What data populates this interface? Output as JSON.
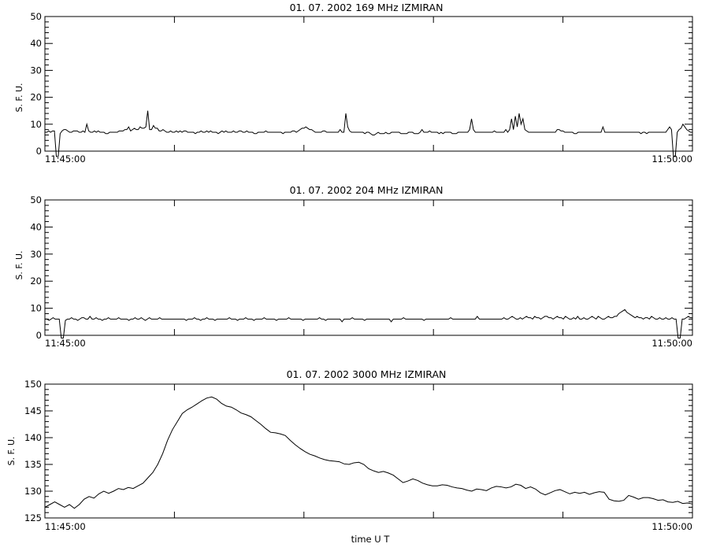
{
  "chart_data": [
    {
      "type": "line",
      "title": "01.  07.  2002    169 MHz    IZMIRAN",
      "ylabel": "S. F. U.",
      "xlabel": "",
      "ylim": [
        0,
        50
      ],
      "yticks": [
        0,
        10,
        20,
        30,
        40,
        50
      ],
      "xlim": [
        "11:45:00",
        "11:50:00"
      ],
      "xtick_labels": [
        "11:45:00",
        "11:50:00"
      ],
      "minor_x_ticks": 5,
      "series": [
        {
          "values": [
            7,
            7,
            7.5,
            7,
            7.5,
            7.5,
            -2,
            -2,
            6.5,
            7.5,
            8,
            8,
            7.5,
            7,
            7,
            7.5,
            7.5,
            7.5,
            7,
            7,
            7.5,
            7,
            10,
            7.5,
            7,
            7,
            7.5,
            7,
            7.5,
            7,
            7,
            7,
            6.5,
            6.5,
            7,
            7,
            7,
            7,
            7,
            7.5,
            7.5,
            7.5,
            8,
            8,
            9,
            7.5,
            8,
            8.5,
            8,
            8,
            9,
            8.5,
            8.5,
            9,
            15,
            8,
            8,
            9.5,
            8.5,
            8.5,
            7.5,
            7.5,
            8,
            7.5,
            7,
            7,
            7.5,
            7,
            7,
            7.5,
            7,
            7.5,
            7,
            7.5,
            7.5,
            7,
            7,
            7,
            7,
            6.5,
            7,
            7,
            7.5,
            7,
            7,
            7.5,
            7,
            7.5,
            7,
            7,
            7,
            6.5,
            7,
            7.5,
            7,
            7.5,
            7,
            7,
            7,
            7.5,
            7,
            7,
            7.5,
            7.5,
            7,
            7,
            7.5,
            7,
            7,
            7,
            6.5,
            6.5,
            7,
            7,
            7,
            7,
            7.5,
            7,
            7,
            7,
            7,
            7,
            7,
            7,
            7,
            6.5,
            7,
            7,
            7,
            7,
            7.5,
            7.5,
            7,
            7.5,
            8,
            8.5,
            8.5,
            9,
            8.5,
            8,
            8,
            7.5,
            7,
            7,
            7,
            7,
            7.5,
            7.5,
            7,
            7,
            7,
            7,
            7,
            7,
            7,
            8,
            7,
            7,
            14,
            9,
            7.5,
            7,
            7,
            7,
            7,
            7,
            7,
            7,
            6.5,
            7,
            7,
            6.5,
            6,
            6,
            6.5,
            7,
            6.5,
            6.5,
            6.5,
            7,
            6.5,
            6.5,
            7,
            7,
            7,
            7,
            7,
            6.5,
            6.5,
            6.5,
            6.5,
            7,
            7,
            7,
            6.5,
            6.5,
            6.5,
            7,
            8,
            7,
            7,
            7,
            7.5,
            7,
            7,
            7,
            7,
            6.5,
            7,
            6.5,
            7,
            7,
            7,
            7,
            6.5,
            6.5,
            6.5,
            7,
            7,
            7,
            7,
            7,
            7,
            8,
            12,
            8,
            7,
            7,
            7,
            7,
            7,
            7,
            7,
            7,
            7,
            7,
            7.5,
            7,
            7,
            7,
            7,
            7,
            8,
            7,
            8,
            12,
            8,
            13,
            9,
            14,
            10,
            12,
            8,
            7.5,
            7,
            7,
            7,
            7,
            7,
            7,
            7,
            7,
            7,
            7,
            7,
            7,
            7,
            7,
            7,
            8,
            8,
            7.5,
            7.5,
            7,
            7,
            7,
            7,
            7,
            6.5,
            6.5,
            7,
            7,
            7,
            7,
            7,
            7,
            7,
            7,
            7,
            7,
            7,
            7,
            7,
            9,
            7,
            7,
            7,
            7,
            7,
            7,
            7,
            7,
            7,
            7,
            7,
            7,
            7,
            7,
            7,
            7,
            7,
            7,
            7,
            6.5,
            7,
            7,
            6.5,
            7,
            7,
            7,
            7,
            7,
            7,
            7,
            7,
            7,
            7,
            8,
            9,
            8,
            -2,
            -2,
            7,
            8,
            8.5,
            10,
            9,
            8,
            7.5,
            7,
            7
          ]
        }
      ]
    },
    {
      "type": "line",
      "title": "01.  07.  2002    204 MHz    IZMIRAN",
      "ylabel": "S. F. U.",
      "xlabel": "",
      "ylim": [
        0,
        50
      ],
      "yticks": [
        0,
        10,
        20,
        30,
        40,
        50
      ],
      "xlim": [
        "11:45:00",
        "11:50:00"
      ],
      "xtick_labels": [
        "11:45:00",
        "11:50:00"
      ],
      "minor_x_ticks": 5,
      "series": [
        {
          "values": [
            6,
            6,
            5.5,
            6,
            6.5,
            6,
            6,
            6,
            -1,
            -1,
            5.5,
            6,
            6,
            6.5,
            6,
            6,
            5.5,
            6,
            6.5,
            6.5,
            6,
            6,
            7,
            6,
            6,
            6.5,
            6,
            6,
            5.5,
            6,
            6,
            6.5,
            6,
            6,
            6,
            6,
            6.5,
            6,
            6,
            6,
            6,
            5.5,
            6,
            6,
            6.5,
            6,
            6,
            6.5,
            6,
            5.5,
            6,
            6.5,
            6,
            6,
            6,
            6,
            6.5,
            6,
            6,
            6,
            6,
            6,
            6,
            6,
            6,
            6,
            6,
            6,
            6,
            5.5,
            6,
            6,
            6,
            6.5,
            6,
            6,
            5.5,
            6,
            6,
            6.5,
            6,
            6,
            6,
            5.5,
            6,
            6,
            6,
            6,
            6,
            6,
            6.5,
            6,
            6,
            6,
            5.5,
            6,
            6,
            6,
            6.5,
            6,
            6,
            6,
            5.5,
            6,
            6,
            6,
            6,
            6.5,
            6,
            6,
            6,
            6,
            6,
            5.5,
            6,
            6,
            6,
            6,
            6,
            6.5,
            6,
            6,
            6,
            6,
            6,
            6,
            5.5,
            6,
            6,
            6,
            6,
            6,
            6,
            6,
            6.5,
            6,
            6,
            5.5,
            6,
            6,
            6,
            6,
            6,
            6,
            6,
            5,
            6,
            6,
            6,
            6,
            6.5,
            6,
            6,
            6,
            6,
            6,
            5.5,
            6,
            6,
            6,
            6,
            6,
            6,
            6,
            6,
            6,
            6,
            6,
            6,
            5,
            6,
            6,
            6,
            6,
            6,
            6.5,
            6,
            6,
            6,
            6,
            6,
            6,
            6,
            6,
            6,
            5.5,
            6,
            6,
            6,
            6,
            6,
            6,
            6,
            6,
            6,
            6,
            6,
            6,
            6.5,
            6,
            6,
            6,
            6,
            6,
            6,
            6,
            6,
            6,
            6,
            6,
            6,
            7,
            6,
            6,
            6,
            6,
            6,
            6,
            6,
            6,
            6,
            6,
            6,
            6,
            6.5,
            6,
            6,
            6.5,
            7,
            6.5,
            6,
            6,
            6.5,
            6,
            6.5,
            7,
            6.5,
            6.5,
            6,
            7,
            6.5,
            6.5,
            6,
            6.5,
            7,
            7,
            6.5,
            6.5,
            6,
            6.5,
            7,
            6.5,
            6.5,
            6,
            7,
            6.5,
            6,
            6,
            6.5,
            6,
            7,
            6,
            6,
            6.5,
            6,
            6,
            6.5,
            7,
            6.5,
            6,
            7,
            6.5,
            6,
            6,
            6.5,
            7,
            6.5,
            6.5,
            7,
            7,
            8,
            8.5,
            9,
            9.5,
            8.5,
            8,
            7.5,
            7,
            6.5,
            7,
            6.5,
            6.5,
            6,
            6.5,
            6.5,
            6,
            7,
            6.5,
            6,
            6,
            6.5,
            6,
            6,
            6.5,
            6,
            6,
            6.5,
            6,
            6,
            -1,
            -1,
            6,
            6,
            6.5,
            7,
            6.5,
            6.5
          ]
        }
      ]
    },
    {
      "type": "line",
      "title": "01.  07.  2002    3000 MHz    IZMIRAN",
      "ylabel": "S. F. U.",
      "xlabel": "time  U T",
      "ylim": [
        125,
        150
      ],
      "yticks": [
        125,
        130,
        135,
        140,
        145,
        150
      ],
      "xlim": [
        "11:45:00",
        "11:50:00"
      ],
      "xtick_labels": [
        "11:45:00",
        "11:50:00"
      ],
      "minor_x_ticks": 5,
      "series": [
        {
          "values": [
            127,
            127.5,
            128,
            127.5,
            127,
            127.5,
            126.8,
            127.5,
            128.5,
            129,
            128.7,
            129.5,
            130,
            129.6,
            130,
            130.5,
            130.3,
            130.7,
            130.5,
            131,
            131.5,
            132.5,
            133.5,
            135,
            137,
            139.5,
            141.5,
            143,
            144.5,
            145.2,
            145.7,
            146.3,
            146.9,
            147.4,
            147.6,
            147.2,
            146.4,
            145.9,
            145.7,
            145.2,
            144.6,
            144.3,
            143.9,
            143.2,
            142.5,
            141.7,
            141,
            140.9,
            140.7,
            140.4,
            139.5,
            138.7,
            138,
            137.4,
            136.9,
            136.6,
            136.2,
            135.9,
            135.7,
            135.6,
            135.5,
            135.1,
            135,
            135.3,
            135.4,
            135,
            134.2,
            133.8,
            133.5,
            133.7,
            133.4,
            133,
            132.3,
            131.6,
            131.9,
            132.3,
            132,
            131.5,
            131.2,
            131,
            131,
            131.2,
            131.1,
            130.8,
            130.6,
            130.5,
            130.2,
            130,
            130.4,
            130.3,
            130.1,
            130.6,
            130.9,
            130.8,
            130.6,
            130.8,
            131.3,
            131.1,
            130.5,
            130.8,
            130.4,
            129.7,
            129.3,
            129.7,
            130.1,
            130.3,
            129.9,
            129.5,
            129.8,
            129.6,
            129.8,
            129.4,
            129.7,
            129.9,
            129.8,
            128.5,
            128.2,
            128.1,
            128.3,
            129.2,
            128.9,
            128.5,
            128.8,
            128.8,
            128.6,
            128.3,
            128.4,
            128,
            127.9,
            128.1,
            127.7,
            127.8,
            127.6
          ]
        }
      ]
    }
  ]
}
